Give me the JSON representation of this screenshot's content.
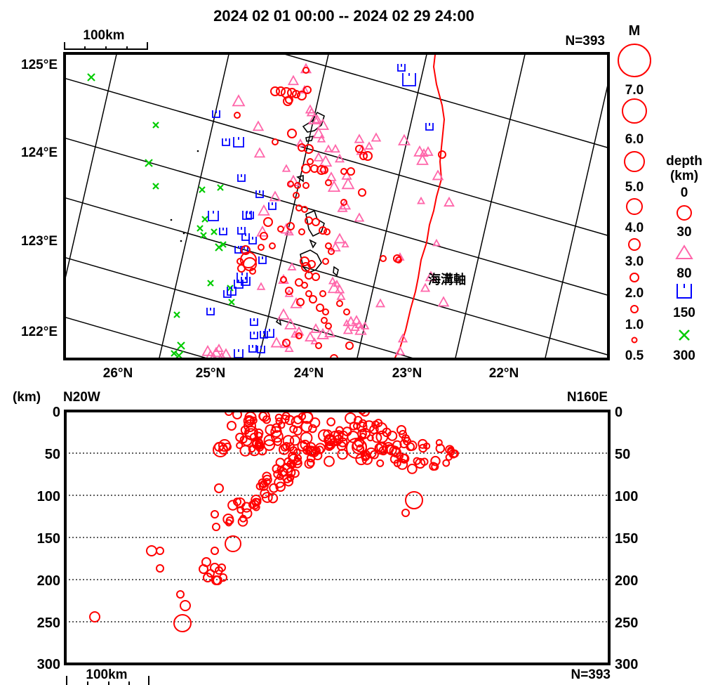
{
  "header": {
    "period": "2024  02  01  00:00  --  2024  02  29  24:00",
    "count_label": "N=393"
  },
  "map": {
    "scale_label": "100km",
    "lon_labels": [
      "125°E",
      "124°E",
      "123°E",
      "122°E"
    ],
    "lat_labels": [
      "26°N",
      "25°N",
      "24°N",
      "23°N",
      "22°N"
    ],
    "trench_label": "海溝軸",
    "trench_color": "#ff0000"
  },
  "legend": {
    "magnitude_title": "M",
    "magnitude_labels": [
      "7.0",
      "6.0",
      "5.0",
      "4.0",
      "3.0",
      "2.0",
      "1.0",
      "0.5"
    ],
    "depth_title": "depth",
    "depth_unit": "(km)",
    "depth_labels": [
      "0",
      "30",
      "80",
      "150",
      "300"
    ],
    "depth_colors": [
      "#ff0000",
      "#ff66aa",
      "#0000ff",
      "#00cc00"
    ]
  },
  "section": {
    "unit_label": "(km)",
    "left_direction": "N20W",
    "right_direction": "N160E",
    "depth_ticks": [
      "0",
      "50",
      "100",
      "150",
      "200",
      "250",
      "300"
    ],
    "scale_label": "100km",
    "count_label": "N=393"
  }
}
